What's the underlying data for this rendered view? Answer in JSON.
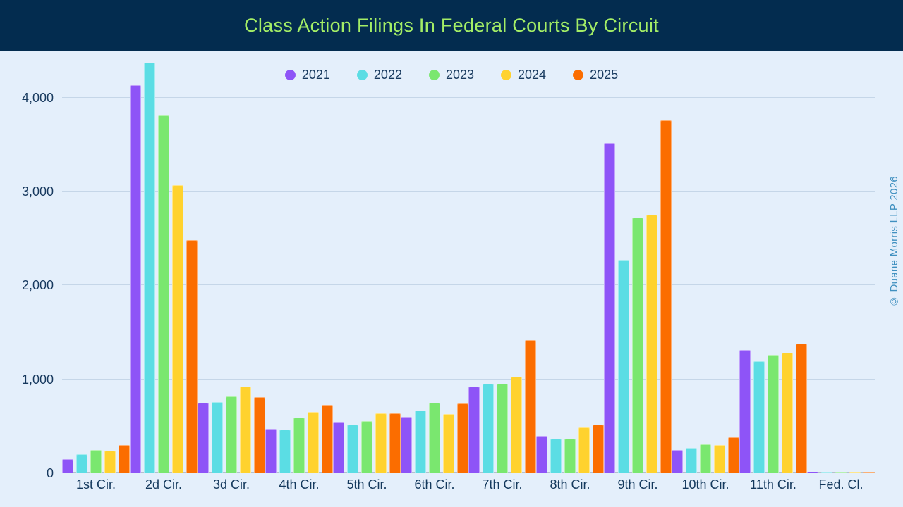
{
  "header": {
    "title": "Class Action Filings In Federal Courts By Circuit"
  },
  "watermark": "© Duane Morris LLP 2026",
  "colors": {
    "header_bg": "#032C4F",
    "title_text": "#A4EE66",
    "background": "#E4EFFB",
    "axis_text": "#17395E",
    "gridline": "#C5D6E8",
    "baseline": "#B3C0CD",
    "watermark": "#4090C0"
  },
  "chart_data": {
    "type": "bar",
    "title": "Class Action Filings In Federal Courts By Circuit",
    "xlabel": "",
    "ylabel": "",
    "ylim": [
      0,
      4500
    ],
    "grid": true,
    "legend_position": "top",
    "yticks": [
      {
        "value": 0,
        "label": "0"
      },
      {
        "value": 1000,
        "label": "1,000"
      },
      {
        "value": 2000,
        "label": "2,000"
      },
      {
        "value": 3000,
        "label": "3,000"
      },
      {
        "value": 4000,
        "label": "4,000"
      }
    ],
    "categories": [
      "1st Cir.",
      "2d Cir.",
      "3d Cir.",
      "4th Cir.",
      "5th Cir.",
      "6th Cir.",
      "7th Cir.",
      "8th Cir.",
      "9th Cir.",
      "10th Cir.",
      "11th Cir.",
      "Fed. Cl."
    ],
    "series": [
      {
        "name": "2021",
        "color": "#8E54F7",
        "values": [
          150,
          4130,
          750,
          470,
          550,
          600,
          920,
          400,
          3520,
          250,
          1310,
          12
        ]
      },
      {
        "name": "2022",
        "color": "#5BDDE4",
        "values": [
          200,
          4370,
          760,
          465,
          520,
          670,
          950,
          370,
          2270,
          270,
          1190,
          8
        ]
      },
      {
        "name": "2023",
        "color": "#7AE76F",
        "values": [
          250,
          3810,
          820,
          590,
          555,
          750,
          955,
          370,
          2720,
          310,
          1260,
          10
        ]
      },
      {
        "name": "2024",
        "color": "#FFD22E",
        "values": [
          240,
          3070,
          920,
          650,
          635,
          630,
          1030,
          490,
          2750,
          300,
          1280,
          5
        ]
      },
      {
        "name": "2025",
        "color": "#FB6D00",
        "values": [
          300,
          2480,
          810,
          730,
          640,
          745,
          1420,
          515,
          3760,
          380,
          1380,
          5
        ]
      }
    ]
  }
}
